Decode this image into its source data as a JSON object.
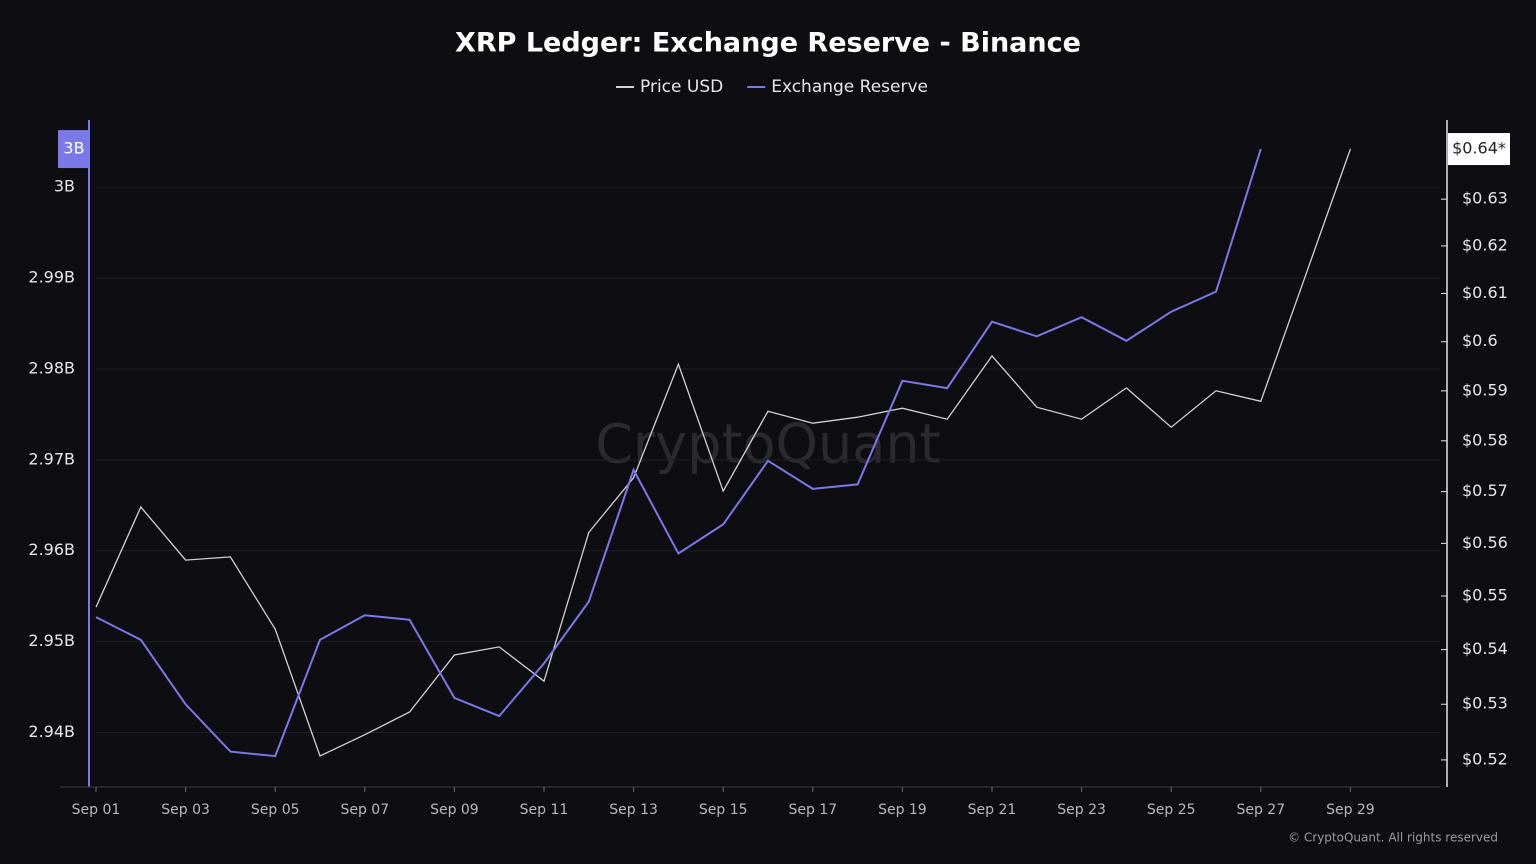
{
  "chart_data": {
    "type": "line",
    "title": "XRP Ledger: Exchange Reserve - Binance",
    "watermark": "CryptoQuant",
    "footer": "© CryptoQuant. All rights reserved",
    "categories": [
      "Sep 01",
      null,
      "Sep 03",
      null,
      "Sep 05",
      null,
      "Sep 07",
      null,
      "Sep 09",
      null,
      "Sep 11",
      null,
      "Sep 13",
      null,
      "Sep 15",
      null,
      "Sep 17",
      null,
      "Sep 19",
      null,
      "Sep 21",
      null,
      "Sep 23",
      null,
      "Sep 25",
      null,
      "Sep 27",
      null,
      "Sep 29"
    ],
    "series": [
      {
        "name": "Price USD",
        "color": "#d2d2d6",
        "axis": "y2",
        "values": [
          0.5479,
          0.567,
          0.5568,
          0.5574,
          0.5438,
          0.5207,
          0.5245,
          0.5286,
          0.539,
          0.5405,
          0.5342,
          0.5621,
          0.5727,
          0.5954,
          0.5701,
          0.5859,
          0.5835,
          0.5847,
          0.5865,
          0.5843,
          0.5971,
          0.5867,
          0.5843,
          0.5906,
          0.5827,
          0.59,
          0.5879,
          0.6138,
          0.6409
        ],
        "value_labels": [
          null,
          null,
          null,
          null,
          null,
          null,
          null,
          null,
          null,
          null,
          null,
          null,
          null,
          null,
          null,
          null,
          null,
          null,
          null,
          null,
          null,
          null,
          null,
          null,
          null,
          null,
          null,
          null,
          "$0.64*"
        ]
      },
      {
        "name": "Exchange Reserve",
        "color": "#7b78ea",
        "axis": "y",
        "values": [
          2.9527,
          2.9502,
          2.9431,
          2.9379,
          2.9374,
          2.9502,
          2.9529,
          2.9524,
          2.9438,
          2.9418,
          2.9476,
          2.9544,
          2.9689,
          2.9597,
          2.9629,
          2.9699,
          2.9668,
          2.9673,
          2.9787,
          2.9779,
          2.9852,
          2.9836,
          2.9857,
          2.9831,
          2.9863,
          2.9885,
          3.0042,
          null,
          null
        ],
        "value_labels": [
          null,
          null,
          null,
          null,
          null,
          null,
          null,
          null,
          null,
          null,
          null,
          null,
          null,
          null,
          null,
          null,
          null,
          null,
          null,
          null,
          null,
          null,
          null,
          null,
          null,
          null,
          "3B",
          null,
          null
        ]
      }
    ],
    "ylim": [
      2.934,
      3.0074
    ],
    "yticks": [
      {
        "value": 2.94,
        "label": "2.94B"
      },
      {
        "value": 2.95,
        "label": "2.95B"
      },
      {
        "value": 2.96,
        "label": "2.96B"
      },
      {
        "value": 2.97,
        "label": "2.97B"
      },
      {
        "value": 2.98,
        "label": "2.98B"
      },
      {
        "value": 2.99,
        "label": "2.99B"
      },
      {
        "value": 3,
        "label": "3B"
      }
    ],
    "y2lim": [
      0.5152,
      0.6473
    ],
    "y2scale": "log",
    "y2ticks": [
      {
        "value": 0.52,
        "label": "$0.52"
      },
      {
        "value": 0.53,
        "label": "$0.53"
      },
      {
        "value": 0.54,
        "label": "$0.54"
      },
      {
        "value": 0.55,
        "label": "$0.55"
      },
      {
        "value": 0.56,
        "label": "$0.56"
      },
      {
        "value": 0.57,
        "label": "$0.57"
      },
      {
        "value": 0.58,
        "label": "$0.58"
      },
      {
        "value": 0.59,
        "label": "$0.59"
      },
      {
        "value": 0.6,
        "label": "$0.6"
      },
      {
        "value": 0.61,
        "label": "$0.61"
      },
      {
        "value": 0.62,
        "label": "$0.62"
      },
      {
        "value": 0.63,
        "label": "$0.63"
      }
    ],
    "grid": true,
    "legend": "top"
  }
}
